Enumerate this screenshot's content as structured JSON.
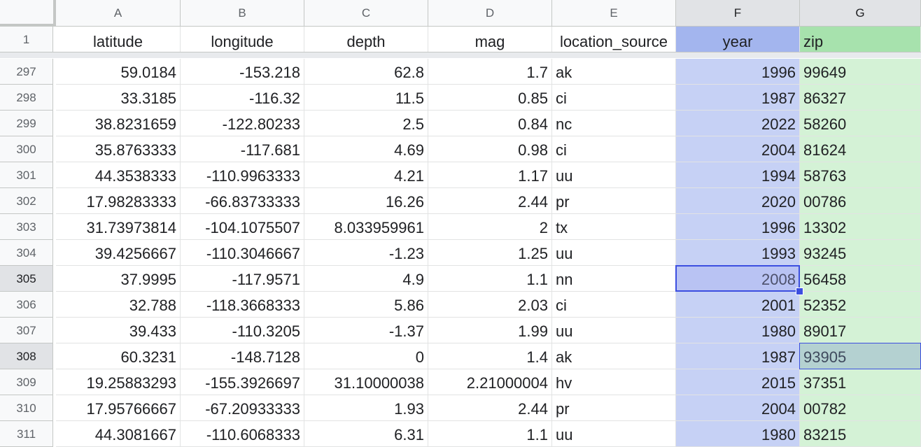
{
  "columns": [
    "A",
    "B",
    "C",
    "D",
    "E",
    "F",
    "G"
  ],
  "header_row_number": "1",
  "headers": [
    "latitude",
    "longitude",
    "depth",
    "mag",
    "location_source",
    "year",
    "zip"
  ],
  "rows": [
    {
      "n": "297",
      "cells": [
        "59.0184",
        "-153.218",
        "62.8",
        "1.7",
        "ak",
        "1996",
        "99649"
      ]
    },
    {
      "n": "298",
      "cells": [
        "33.3185",
        "-116.32",
        "11.5",
        "0.85",
        "ci",
        "1987",
        "86327"
      ]
    },
    {
      "n": "299",
      "cells": [
        "38.8231659",
        "-122.80233",
        "2.5",
        "0.84",
        "nc",
        "2022",
        "58260"
      ]
    },
    {
      "n": "300",
      "cells": [
        "35.8763333",
        "-117.681",
        "4.69",
        "0.98",
        "ci",
        "2004",
        "81624"
      ]
    },
    {
      "n": "301",
      "cells": [
        "44.3538333",
        "-110.9963333",
        "4.21",
        "1.17",
        "uu",
        "1994",
        "58763"
      ]
    },
    {
      "n": "302",
      "cells": [
        "17.98283333",
        "-66.83733333",
        "16.26",
        "2.44",
        "pr",
        "2020",
        "00786"
      ]
    },
    {
      "n": "303",
      "cells": [
        "31.73973814",
        "-104.1075507",
        "8.033959961",
        "2",
        "tx",
        "1996",
        "13302"
      ]
    },
    {
      "n": "304",
      "cells": [
        "39.4256667",
        "-110.3046667",
        "-1.23",
        "1.25",
        "uu",
        "1993",
        "93245"
      ]
    },
    {
      "n": "305",
      "cells": [
        "37.9995",
        "-117.9571",
        "4.9",
        "1.1",
        "nn",
        "2008",
        "56458"
      ]
    },
    {
      "n": "306",
      "cells": [
        "32.788",
        "-118.3668333",
        "5.86",
        "2.03",
        "ci",
        "2001",
        "52352"
      ]
    },
    {
      "n": "307",
      "cells": [
        "39.433",
        "-110.3205",
        "-1.37",
        "1.99",
        "uu",
        "1980",
        "89017"
      ]
    },
    {
      "n": "308",
      "cells": [
        "60.3231",
        "-148.7128",
        "0",
        "1.4",
        "ak",
        "1987",
        "93905"
      ]
    },
    {
      "n": "309",
      "cells": [
        "19.25883293",
        "-155.3926697",
        "31.10000038",
        "2.21000004",
        "hv",
        "2015",
        "37351"
      ]
    },
    {
      "n": "310",
      "cells": [
        "17.95766667",
        "-67.20933333",
        "1.93",
        "2.44",
        "pr",
        "2004",
        "00782"
      ]
    },
    {
      "n": "311",
      "cells": [
        "44.3081667",
        "-110.6068333",
        "6.31",
        "1.1",
        "uu",
        "1980",
        "83215"
      ]
    }
  ],
  "selection": {
    "active_cell": "F305",
    "secondary_cell": "G308",
    "selected_columns": [
      "F",
      "G"
    ]
  },
  "colors": {
    "col_f_fill": "#c6d1f5",
    "col_g_fill": "#d4f2d6",
    "col_f_header": "#a3b5ee",
    "col_g_header": "#a7e2ad",
    "selection_border": "#3c4ee0"
  }
}
